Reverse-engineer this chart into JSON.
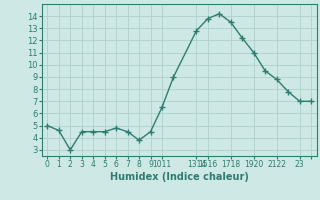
{
  "x": [
    0,
    1,
    2,
    3,
    4,
    5,
    6,
    7,
    8,
    9,
    10,
    11,
    13,
    14,
    15,
    16,
    17,
    18,
    19,
    20,
    21,
    22,
    23
  ],
  "y": [
    5.0,
    4.6,
    3.0,
    4.5,
    4.5,
    4.5,
    4.8,
    4.5,
    3.8,
    4.5,
    6.5,
    9.0,
    12.8,
    13.8,
    14.2,
    13.5,
    12.2,
    11.0,
    9.5,
    8.8,
    7.8,
    7.0,
    7.0
  ],
  "xlabel": "Humidex (Indice chaleur)",
  "ylim": [
    2.5,
    15.0
  ],
  "xlim": [
    -0.5,
    23.5
  ],
  "yticks": [
    3,
    4,
    5,
    6,
    7,
    8,
    9,
    10,
    11,
    12,
    13,
    14
  ],
  "xtick_positions": [
    0,
    1,
    2,
    3,
    4,
    5,
    6,
    7,
    8,
    9,
    10,
    13,
    14,
    16,
    18,
    20,
    22,
    23
  ],
  "xtick_labels": [
    "0",
    "1",
    "2",
    "3",
    "4",
    "5",
    "6",
    "7",
    "8",
    "9",
    "1011",
    "1314",
    "1516",
    "1718",
    "1920",
    "2122",
    "23",
    ""
  ],
  "bg_color": "#cde8e5",
  "line_color": "#2e7d6e",
  "grid_color": "#aecfcb"
}
